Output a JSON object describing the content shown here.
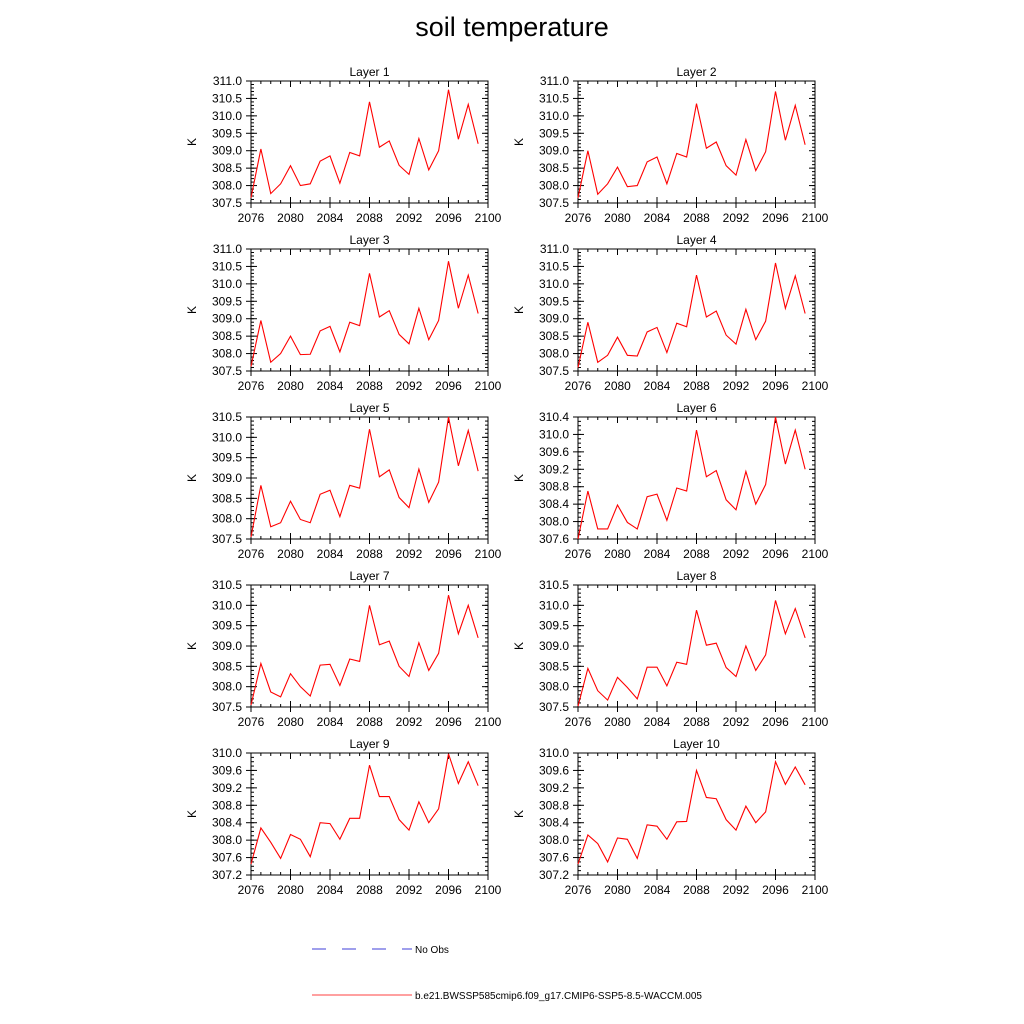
{
  "title": "soil temperature",
  "colors": {
    "model": "#ff0000",
    "obs": "#0000cd",
    "axis": "#000000"
  },
  "chart_data": {
    "type": "line",
    "x": [
      2076,
      2077,
      2078,
      2079,
      2080,
      2081,
      2082,
      2083,
      2084,
      2085,
      2086,
      2087,
      2088,
      2089,
      2090,
      2091,
      2092,
      2093,
      2094,
      2095,
      2096,
      2097,
      2098,
      2099
    ],
    "xlim": [
      2076,
      2100
    ],
    "xticks": [
      2076,
      2080,
      2084,
      2088,
      2092,
      2096,
      2100
    ],
    "ylabel": "K",
    "panels": [
      {
        "title": "Layer 1",
        "ylim": [
          307.5,
          311.0
        ],
        "yticks": [
          "307.5",
          "308.0",
          "308.5",
          "309.0",
          "309.5",
          "310.0",
          "310.5",
          "311.0"
        ],
        "ystep_minor": 0.1,
        "values": [
          307.65,
          309.05,
          307.77,
          308.05,
          308.57,
          308.0,
          308.05,
          308.7,
          308.85,
          308.07,
          308.95,
          308.85,
          310.4,
          309.1,
          309.28,
          308.58,
          308.32,
          309.35,
          308.45,
          309.0,
          310.75,
          309.33,
          310.33,
          309.2
        ]
      },
      {
        "title": "Layer 2",
        "ylim": [
          307.5,
          311.0
        ],
        "yticks": [
          "307.5",
          "308.0",
          "308.5",
          "309.0",
          "309.5",
          "310.0",
          "310.5",
          "311.0"
        ],
        "ystep_minor": 0.1,
        "values": [
          307.65,
          309.0,
          307.75,
          308.05,
          308.53,
          307.97,
          308.0,
          308.68,
          308.82,
          308.05,
          308.92,
          308.82,
          310.35,
          309.07,
          309.25,
          308.57,
          308.3,
          309.32,
          308.43,
          308.97,
          310.7,
          309.3,
          310.3,
          309.17
        ]
      },
      {
        "title": "Layer 3",
        "ylim": [
          307.5,
          311.0
        ],
        "yticks": [
          "307.5",
          "308.0",
          "308.5",
          "309.0",
          "309.5",
          "310.0",
          "310.5",
          "311.0"
        ],
        "ystep_minor": 0.1,
        "values": [
          307.63,
          308.95,
          307.75,
          308.0,
          308.5,
          307.97,
          307.98,
          308.65,
          308.78,
          308.05,
          308.9,
          308.8,
          310.3,
          309.05,
          309.23,
          308.55,
          308.28,
          309.3,
          308.4,
          308.95,
          310.65,
          309.3,
          310.25,
          309.15
        ]
      },
      {
        "title": "Layer 4",
        "ylim": [
          307.5,
          311.0
        ],
        "yticks": [
          "307.5",
          "308.0",
          "308.5",
          "309.0",
          "309.5",
          "310.0",
          "310.5",
          "311.0"
        ],
        "ystep_minor": 0.1,
        "values": [
          307.6,
          308.9,
          307.75,
          307.95,
          308.47,
          307.95,
          307.93,
          308.62,
          308.75,
          308.03,
          308.87,
          308.77,
          310.25,
          309.05,
          309.22,
          308.53,
          308.27,
          309.27,
          308.4,
          308.93,
          310.6,
          309.3,
          310.23,
          309.15
        ]
      },
      {
        "title": "Layer 5",
        "ylim": [
          307.5,
          310.5
        ],
        "yticks": [
          "307.5",
          "308.0",
          "308.5",
          "309.0",
          "309.5",
          "310.0",
          "310.5"
        ],
        "ystep_minor": 0.1,
        "values": [
          307.55,
          308.82,
          307.8,
          307.9,
          308.43,
          307.98,
          307.9,
          308.6,
          308.7,
          308.05,
          308.82,
          308.75,
          310.2,
          309.03,
          309.2,
          308.52,
          308.27,
          309.22,
          308.4,
          308.9,
          310.5,
          309.3,
          310.17,
          309.17
        ]
      },
      {
        "title": "Layer 6",
        "ylim": [
          307.6,
          310.4
        ],
        "yticks": [
          "307.6",
          "308.0",
          "308.4",
          "308.8",
          "309.2",
          "309.6",
          "310.0",
          "310.4"
        ],
        "ystep_minor": 0.1,
        "values": [
          307.6,
          308.7,
          307.83,
          307.83,
          308.38,
          307.98,
          307.83,
          308.57,
          308.63,
          308.03,
          308.77,
          308.7,
          310.1,
          309.03,
          309.17,
          308.5,
          308.27,
          309.15,
          308.4,
          308.85,
          310.4,
          309.32,
          310.1,
          309.2
        ]
      },
      {
        "title": "Layer 7",
        "ylim": [
          307.5,
          310.5
        ],
        "yticks": [
          "307.5",
          "308.0",
          "308.5",
          "309.0",
          "309.5",
          "310.0",
          "310.5"
        ],
        "ystep_minor": 0.1,
        "values": [
          307.55,
          308.57,
          307.87,
          307.75,
          308.32,
          308.0,
          307.77,
          308.53,
          308.55,
          308.03,
          308.68,
          308.62,
          310.0,
          309.03,
          309.12,
          308.5,
          308.25,
          309.08,
          308.4,
          308.82,
          310.25,
          309.3,
          310.0,
          309.2
        ]
      },
      {
        "title": "Layer 8",
        "ylim": [
          307.5,
          310.5
        ],
        "yticks": [
          "307.5",
          "308.0",
          "308.5",
          "309.0",
          "309.5",
          "310.0",
          "310.5"
        ],
        "ystep_minor": 0.1,
        "values": [
          307.52,
          308.45,
          307.9,
          307.67,
          308.23,
          307.98,
          307.7,
          308.48,
          308.48,
          308.02,
          308.6,
          308.55,
          309.88,
          309.02,
          309.07,
          308.47,
          308.25,
          309.0,
          308.4,
          308.78,
          310.12,
          309.3,
          309.92,
          309.2
        ]
      },
      {
        "title": "Layer 9",
        "ylim": [
          307.2,
          310.0
        ],
        "yticks": [
          "307.2",
          "307.6",
          "308.0",
          "308.4",
          "308.8",
          "309.2",
          "309.6",
          "310.0"
        ],
        "ystep_minor": 0.1,
        "values": [
          307.45,
          308.28,
          307.95,
          307.58,
          308.13,
          308.02,
          307.62,
          308.4,
          308.38,
          308.02,
          308.5,
          308.5,
          309.72,
          309.0,
          309.0,
          308.47,
          308.23,
          308.88,
          308.4,
          308.72,
          309.98,
          309.3,
          309.8,
          309.25
        ]
      },
      {
        "title": "Layer 10",
        "ylim": [
          307.2,
          310.0
        ],
        "yticks": [
          "307.2",
          "307.6",
          "308.0",
          "308.4",
          "308.8",
          "309.2",
          "309.6",
          "310.0"
        ],
        "ystep_minor": 0.1,
        "values": [
          307.45,
          308.12,
          307.92,
          307.5,
          308.05,
          308.02,
          307.58,
          308.35,
          308.32,
          308.02,
          308.42,
          308.43,
          309.6,
          308.98,
          308.95,
          308.47,
          308.23,
          308.78,
          308.4,
          308.65,
          309.8,
          309.28,
          309.68,
          309.27
        ]
      }
    ],
    "legend": [
      {
        "label": "No Obs",
        "style": "dashed",
        "color": "#0000cd"
      },
      {
        "label": "b.e21.BWSSP585cmip6.f09_g17.CMIP6-SSP5-8.5-WACCM.005",
        "style": "solid",
        "color": "#ff0000"
      }
    ]
  }
}
